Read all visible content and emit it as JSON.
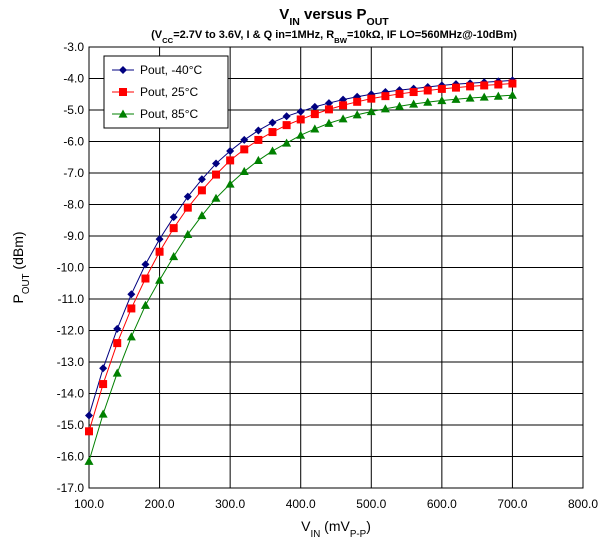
{
  "chart_data": {
    "type": "line",
    "title": "V_IN versus P_OUT",
    "subtitle": "(V_CC=2.7V to 3.6V, I & Q in=1MHz, R_BW=10kΩ, IF LO=560MHz@-10dBm)",
    "xlabel": "V_IN (mV_P-P)",
    "ylabel": "P_OUT (dBm)",
    "xlim": [
      100,
      800
    ],
    "ylim": [
      -17,
      -3
    ],
    "x_ticks": [
      "100.0",
      "200.0",
      "300.0",
      "400.0",
      "500.0",
      "600.0",
      "700.0",
      "800.0"
    ],
    "y_ticks": [
      "-3.0",
      "-4.0",
      "-5.0",
      "-6.0",
      "-7.0",
      "-8.0",
      "-9.0",
      "-10.0",
      "-11.0",
      "-12.0",
      "-13.0",
      "-14.0",
      "-15.0",
      "-16.0",
      "-17.0"
    ],
    "grid": true,
    "legend_position": "top-left",
    "x": [
      100,
      120,
      140,
      160,
      180,
      200,
      220,
      240,
      260,
      280,
      300,
      320,
      340,
      360,
      380,
      400,
      420,
      440,
      460,
      480,
      500,
      520,
      540,
      560,
      580,
      600,
      620,
      640,
      660,
      680,
      700
    ],
    "series": [
      {
        "name": "Pout, -40°C",
        "color": "#000080",
        "marker": "diamond",
        "values": [
          -14.7,
          -13.2,
          -11.95,
          -10.85,
          -9.9,
          -9.1,
          -8.4,
          -7.75,
          -7.2,
          -6.7,
          -6.3,
          -5.95,
          -5.65,
          -5.4,
          -5.2,
          -5.05,
          -4.9,
          -4.78,
          -4.67,
          -4.58,
          -4.5,
          -4.43,
          -4.37,
          -4.32,
          -4.27,
          -4.22,
          -4.18,
          -4.15,
          -4.12,
          -4.09,
          -4.06
        ]
      },
      {
        "name": "Pout, 25°C",
        "color": "#ff0000",
        "marker": "square",
        "values": [
          -15.2,
          -13.7,
          -12.4,
          -11.3,
          -10.35,
          -9.5,
          -8.75,
          -8.1,
          -7.55,
          -7.05,
          -6.6,
          -6.25,
          -5.95,
          -5.7,
          -5.48,
          -5.3,
          -5.13,
          -4.98,
          -4.85,
          -4.74,
          -4.64,
          -4.56,
          -4.49,
          -4.43,
          -4.38,
          -4.33,
          -4.29,
          -4.25,
          -4.22,
          -4.19,
          -4.16
        ]
      },
      {
        "name": "Pout, 85°C",
        "color": "#008000",
        "marker": "triangle",
        "values": [
          -16.15,
          -14.65,
          -13.35,
          -12.2,
          -11.2,
          -10.4,
          -9.65,
          -8.95,
          -8.35,
          -7.8,
          -7.35,
          -6.95,
          -6.6,
          -6.3,
          -6.05,
          -5.8,
          -5.6,
          -5.42,
          -5.28,
          -5.15,
          -5.05,
          -4.96,
          -4.88,
          -4.81,
          -4.75,
          -4.7,
          -4.66,
          -4.62,
          -4.59,
          -4.56,
          -4.53
        ]
      }
    ]
  }
}
